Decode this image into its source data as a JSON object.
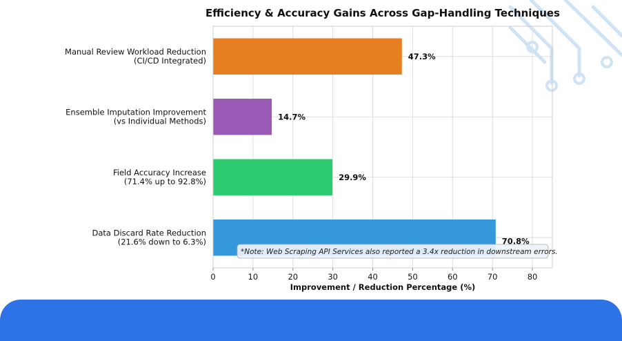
{
  "chart_data": {
    "type": "bar",
    "orientation": "horizontal",
    "title": "Efficiency & Accuracy Gains Across Gap-Handling Techniques",
    "xlabel": "Improvement / Reduction Percentage (%)",
    "ylabel": "",
    "xlim": [
      0,
      85
    ],
    "xticks": [
      0,
      10,
      20,
      30,
      40,
      50,
      60,
      70,
      80
    ],
    "grid": true,
    "categories": [
      [
        "Manual Review Workload Reduction",
        "(CI/CD Integrated)"
      ],
      [
        "Ensemble Imputation Improvement",
        "(vs Individual Methods)"
      ],
      [
        "Field Accuracy Increase",
        "(71.4% up to 92.8%)"
      ],
      [
        "Data Discard Rate Reduction",
        "(21.6% down to 6.3%)"
      ]
    ],
    "values": [
      47.3,
      14.7,
      29.9,
      70.8
    ],
    "value_labels": [
      "47.3%",
      "14.7%",
      "29.9%",
      "70.8%"
    ],
    "colors": [
      "#e67e22",
      "#9b59b6",
      "#2ecc71",
      "#3498db"
    ],
    "annotation": "*Note: Web Scraping API Services also reported a 3.4x reduction in downstream errors."
  },
  "theme": {
    "footer_color": "#2d73e6",
    "decoration_color": "#cfe3f5"
  }
}
